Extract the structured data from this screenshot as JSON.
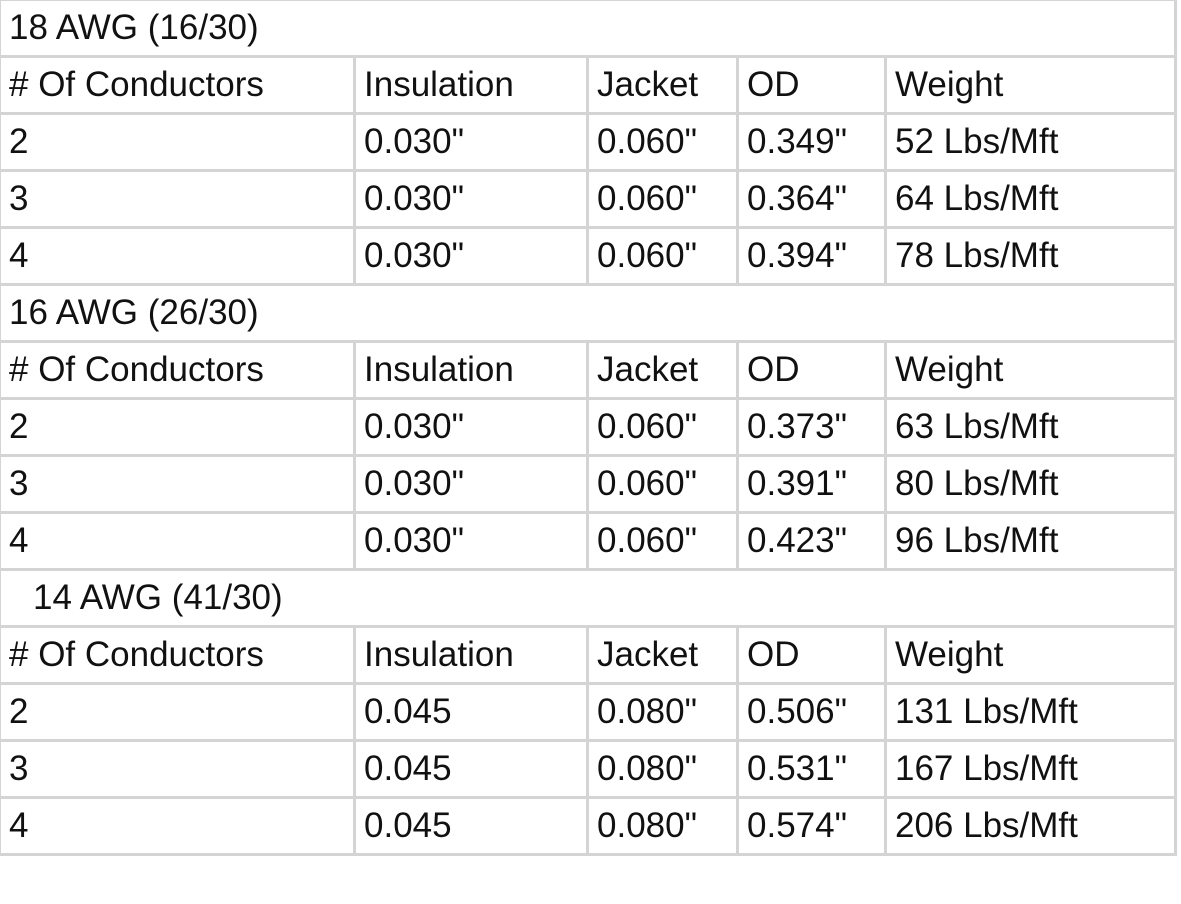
{
  "sections": [
    {
      "title": "18 AWG (16/30)",
      "header": [
        "# Of Conductors",
        "Insulation",
        "Jacket",
        "OD",
        "Weight"
      ],
      "rows": [
        [
          "2",
          "0.030\"",
          "0.060\"",
          "0.349\"",
          "52 Lbs/Mft"
        ],
        [
          "3",
          "0.030\"",
          "0.060\"",
          "0.364\"",
          "64 Lbs/Mft"
        ],
        [
          "4",
          "0.030\"",
          "0.060\"",
          "0.394\"",
          "78 Lbs/Mft"
        ]
      ]
    },
    {
      "title": "16 AWG (26/30)",
      "header": [
        "# Of Conductors",
        "Insulation",
        "Jacket",
        "OD",
        "Weight"
      ],
      "rows": [
        [
          "2",
          "0.030\"",
          "0.060\"",
          "0.373\"",
          "63 Lbs/Mft"
        ],
        [
          "3",
          "0.030\"",
          "0.060\"",
          "0.391\"",
          "80 Lbs/Mft"
        ],
        [
          "4",
          "0.030\"",
          "0.060\"",
          "0.423\"",
          "96 Lbs/Mft"
        ]
      ]
    },
    {
      "title": "14 AWG (41/30)",
      "header": [
        "# Of Conductors",
        "Insulation",
        "Jacket",
        "OD",
        "Weight"
      ],
      "rows": [
        [
          "2",
          "0.045",
          "0.080\"",
          "0.506\"",
          "131 Lbs/Mft"
        ],
        [
          "3",
          "0.045",
          "0.080\"",
          "0.531\"",
          "167 Lbs/Mft"
        ],
        [
          "4",
          "0.045",
          "0.080\"",
          "0.574\"",
          "206 Lbs/Mft"
        ]
      ]
    }
  ]
}
